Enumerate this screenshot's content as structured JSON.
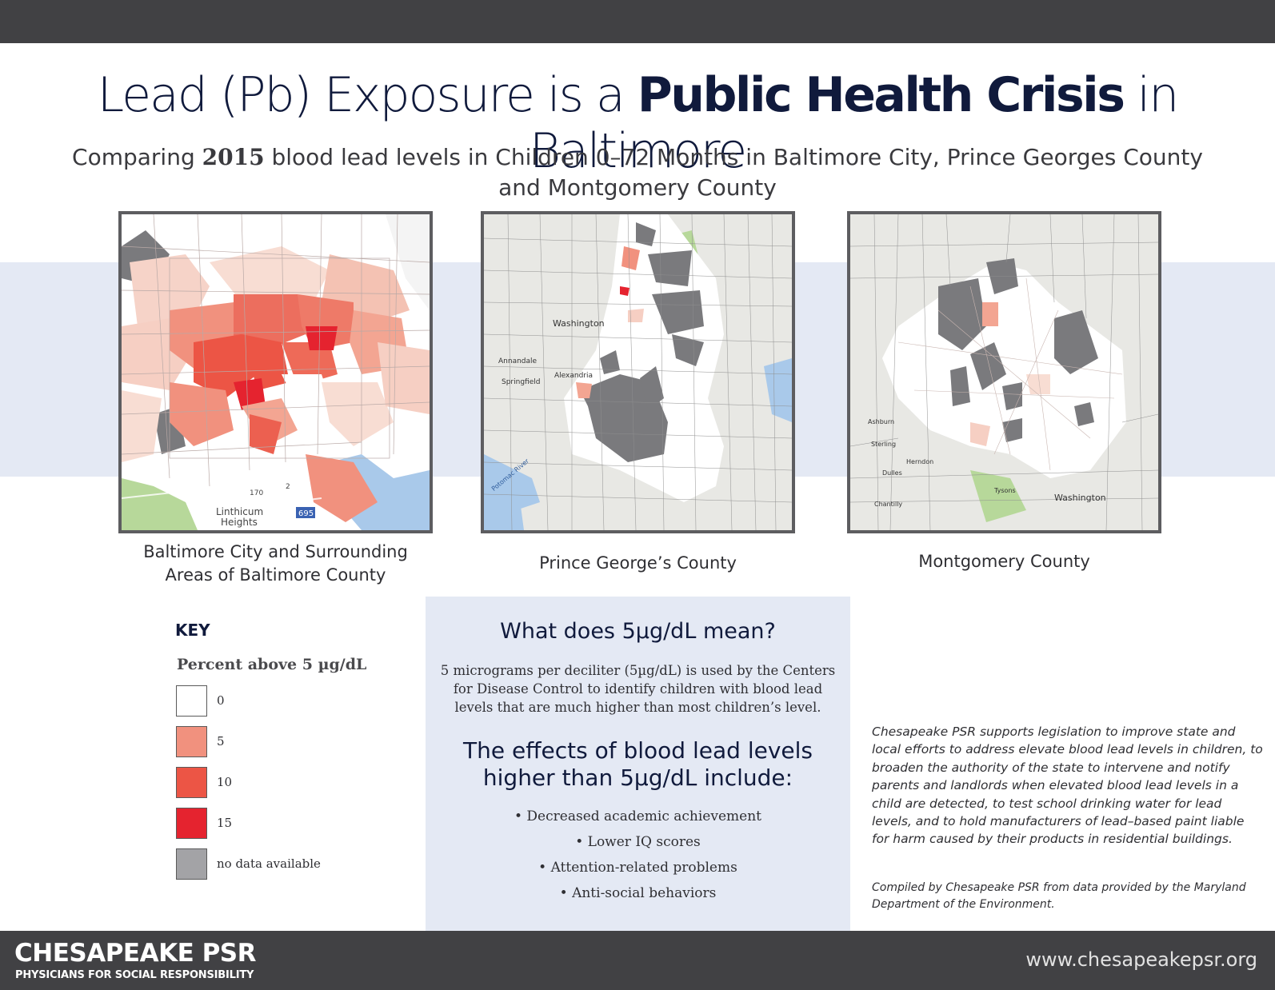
{
  "title": {
    "pre": "Lead (Pb) Exposure is a ",
    "bold": "Public Health Crisis",
    "post": " in Baltimore"
  },
  "subtitle": {
    "pre": "Comparing ",
    "year": "2015",
    "post": " blood lead levels in Children 0–72 Months in Baltimore City, Prince Georges County",
    "line2": "and Montgomery County"
  },
  "maps": {
    "baltimore": {
      "caption_line1": "Baltimore City and Surrounding",
      "caption_line2": "Areas of Baltimore County",
      "labels": [
        "Linthicum",
        "Heights",
        "170",
        "2",
        "695"
      ]
    },
    "prince_georges": {
      "caption": "Prince George’s County",
      "labels": [
        "Washington",
        "Annandale",
        "Alexandria",
        "Springfield",
        "Potomac River"
      ]
    },
    "montgomery": {
      "caption": "Montgomery County",
      "labels": [
        "Washington",
        "Ashburn",
        "Sterling",
        "Herndon",
        "Tysons",
        "Dulles",
        "Chantilly"
      ]
    }
  },
  "key": {
    "title": "KEY",
    "subtitle": "Percent above 5 µg/dL",
    "items": [
      {
        "label": "0",
        "color": "#ffffff"
      },
      {
        "label": "5",
        "color": "#f1917e"
      },
      {
        "label": "10",
        "color": "#ec5545"
      },
      {
        "label": "15",
        "color": "#e5232f"
      },
      {
        "label": "no data available",
        "color": "#a3a3a6"
      }
    ]
  },
  "info": {
    "heading": "What does 5µg/dL mean?",
    "paragraph": "5 micrograms per deciliter (5µg/dL) is used by the Centers for Disease Control to identify children with blood lead levels that are much higher than most children’s level.",
    "effects_heading_line1": "The effects of blood lead levels",
    "effects_heading_line2": "higher than 5µg/dL include:",
    "effects": [
      "• Decreased academic achievement",
      "• Lower IQ scores",
      "• Attention-related problems",
      "• Anti-social behaviors"
    ]
  },
  "note": "Chesapeake PSR supports legislation to improve state and local efforts to address elevate blood lead levels in children, to broaden the authority of the state to intervene and notify parents and landlords when elevated blood lead levels in a child are detected, to test school drinking water for lead levels, and to hold manufacturers of lead–based paint liable for harm caused by their products in residential buildings.",
  "credit": "Compiled by Chesapeake PSR from data provided by the Maryland Department of the Environment.",
  "footer": {
    "org_name": "CHESAPEAKE PSR",
    "org_tagline": "PHYSICIANS FOR SOCIAL RESPONSIBILITY",
    "website": "www.chesapeakepsr.org"
  },
  "colors": {
    "navy": "#101a3c",
    "bar": "#414144",
    "band": "#e4e9f4",
    "no_data": "#7a7a7d",
    "water": "#a9c9ea",
    "park": "#b7d89a"
  }
}
